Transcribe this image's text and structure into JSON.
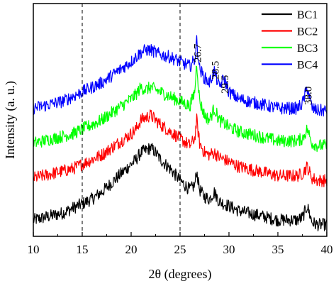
{
  "chart_data": {
    "type": "line",
    "title": "",
    "xlabel": "2θ (degrees)",
    "ylabel": "Intensity (a. u.)",
    "xlim": [
      10,
      40
    ],
    "x_ticks": [
      "10",
      "15",
      "20",
      "25",
      "30",
      "35",
      "40"
    ],
    "y_ticks_labeled": false,
    "grid": false,
    "reference_lines_x": [
      15,
      25
    ],
    "legend": {
      "position": "top-right"
    },
    "series": [
      {
        "name": "BC1",
        "color": "#000000",
        "x": [
          10,
          11,
          12,
          13,
          14,
          15,
          16,
          17,
          18,
          19,
          20,
          20.5,
          21,
          21.5,
          22,
          22.5,
          23,
          24,
          25,
          26,
          26.5,
          26.7,
          27,
          27.5,
          28,
          28.5,
          29,
          30,
          31,
          32,
          33,
          34,
          35,
          36,
          37,
          37.5,
          38,
          38.5,
          39,
          40
        ],
        "y": [
          0.07,
          0.08,
          0.09,
          0.1,
          0.12,
          0.14,
          0.16,
          0.19,
          0.23,
          0.27,
          0.31,
          0.33,
          0.36,
          0.37,
          0.38,
          0.36,
          0.33,
          0.29,
          0.24,
          0.2,
          0.22,
          0.28,
          0.2,
          0.17,
          0.16,
          0.19,
          0.15,
          0.13,
          0.11,
          0.1,
          0.09,
          0.08,
          0.07,
          0.07,
          0.07,
          0.08,
          0.13,
          0.06,
          0.05,
          0.05
        ]
      },
      {
        "name": "BC2",
        "color": "#ff0000",
        "x": [
          10,
          11,
          12,
          13,
          14,
          15,
          16,
          17,
          18,
          19,
          20,
          20.5,
          21,
          21.5,
          22,
          22.5,
          23,
          24,
          25,
          26,
          26.5,
          26.7,
          27,
          27.5,
          28,
          28.5,
          29,
          30,
          31,
          32,
          33,
          34,
          35,
          36,
          37,
          37.5,
          38,
          38.5,
          39,
          40
        ],
        "y": [
          0.25,
          0.26,
          0.27,
          0.28,
          0.29,
          0.31,
          0.33,
          0.35,
          0.38,
          0.41,
          0.44,
          0.46,
          0.5,
          0.51,
          0.52,
          0.5,
          0.48,
          0.45,
          0.42,
          0.39,
          0.42,
          0.5,
          0.4,
          0.36,
          0.35,
          0.36,
          0.34,
          0.32,
          0.3,
          0.29,
          0.28,
          0.27,
          0.26,
          0.26,
          0.26,
          0.27,
          0.3,
          0.25,
          0.24,
          0.24
        ]
      },
      {
        "name": "BC3",
        "color": "#00ff00",
        "x": [
          10,
          11,
          12,
          13,
          14,
          15,
          16,
          17,
          18,
          19,
          20,
          20.5,
          21,
          21.5,
          22,
          22.5,
          23,
          24,
          25,
          26,
          26.5,
          26.7,
          27,
          27.5,
          28,
          28.5,
          29,
          30,
          31,
          32,
          33,
          34,
          35,
          36,
          37,
          37.5,
          38,
          38.5,
          39,
          40
        ],
        "y": [
          0.4,
          0.41,
          0.42,
          0.43,
          0.44,
          0.46,
          0.48,
          0.5,
          0.53,
          0.56,
          0.59,
          0.61,
          0.64,
          0.63,
          0.64,
          0.63,
          0.62,
          0.6,
          0.58,
          0.56,
          0.62,
          0.75,
          0.58,
          0.52,
          0.5,
          0.55,
          0.5,
          0.47,
          0.45,
          0.44,
          0.43,
          0.42,
          0.41,
          0.41,
          0.41,
          0.42,
          0.46,
          0.4,
          0.39,
          0.39
        ]
      },
      {
        "name": "BC4",
        "color": "#0000ff",
        "x": [
          10,
          11,
          12,
          13,
          14,
          15,
          16,
          17,
          18,
          19,
          20,
          20.5,
          21,
          21.5,
          22,
          22.5,
          23,
          24,
          25,
          26,
          26.5,
          26.7,
          27,
          27.5,
          28,
          28.5,
          29,
          29.5,
          30,
          31,
          32,
          33,
          34,
          35,
          36,
          37,
          37.5,
          38,
          38.5,
          39,
          40
        ],
        "y": [
          0.55,
          0.56,
          0.57,
          0.58,
          0.6,
          0.62,
          0.64,
          0.66,
          0.69,
          0.72,
          0.75,
          0.77,
          0.79,
          0.8,
          0.8,
          0.79,
          0.78,
          0.77,
          0.75,
          0.73,
          0.76,
          0.84,
          0.72,
          0.68,
          0.66,
          0.71,
          0.64,
          0.68,
          0.62,
          0.59,
          0.58,
          0.57,
          0.56,
          0.55,
          0.55,
          0.55,
          0.57,
          0.64,
          0.55,
          0.54,
          0.54
        ]
      }
    ],
    "annotations": [
      {
        "text": "26.7",
        "x": 26.7
      },
      {
        "text": "28.5",
        "x": 28.5
      },
      {
        "text": "29.5",
        "x": 29.5
      },
      {
        "text": "38.0",
        "x": 38.0
      }
    ]
  }
}
